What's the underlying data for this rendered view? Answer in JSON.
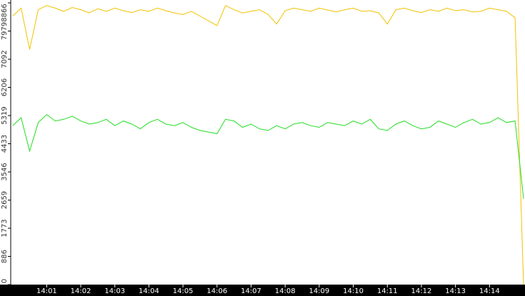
{
  "chart_data": {
    "type": "line",
    "x": [
      null,
      null,
      null,
      null,
      "14:01",
      null,
      null,
      null,
      "14:02",
      null,
      null,
      null,
      "14:03",
      null,
      null,
      null,
      "14:04",
      null,
      null,
      null,
      "14:05",
      null,
      null,
      null,
      "14:06",
      null,
      null,
      null,
      "14:07",
      null,
      null,
      null,
      "14:08",
      null,
      null,
      null,
      "14:09",
      null,
      null,
      null,
      "14:10",
      null,
      null,
      null,
      "14:11",
      null,
      null,
      null,
      "14:12",
      null,
      null,
      null,
      "14:13",
      null,
      null,
      null,
      "14:14",
      null,
      null,
      null,
      null
    ],
    "series": [
      {
        "color": "#f2c200",
        "values": [
          8450,
          8700,
          7400,
          8650,
          8780,
          8700,
          8600,
          8720,
          8650,
          8550,
          8680,
          8600,
          8700,
          8620,
          8560,
          8650,
          8600,
          8700,
          8620,
          8550,
          8500,
          8600,
          8450,
          8300,
          8150,
          8780,
          8650,
          8550,
          8600,
          8650,
          8500,
          8200,
          8620,
          8700,
          8650,
          8600,
          8700,
          8640,
          8580,
          8650,
          8700,
          8600,
          8620,
          8550,
          8200,
          8650,
          8700,
          8620,
          8560,
          8650,
          8600,
          8700,
          8620,
          8650,
          8580,
          8600,
          8700,
          8650,
          8600,
          8400,
          0
        ]
      },
      {
        "color": "#22dd22",
        "values": [
          5000,
          5250,
          4200,
          5100,
          5350,
          5150,
          5200,
          5300,
          5150,
          5050,
          5100,
          5200,
          5000,
          5150,
          5050,
          4900,
          5100,
          5200,
          5050,
          5000,
          5100,
          4950,
          4850,
          4800,
          4750,
          5200,
          5150,
          4950,
          5050,
          4900,
          4850,
          5000,
          4900,
          5050,
          5100,
          5000,
          4950,
          5100,
          5050,
          5000,
          5150,
          5050,
          5200,
          4900,
          4850,
          5050,
          5150,
          5000,
          4900,
          4950,
          5150,
          5050,
          4950,
          5100,
          5200,
          5050,
          5100,
          5250,
          5100,
          5150,
          2700
        ]
      }
    ],
    "ylim": [
      0,
      8866
    ],
    "yticks": [
      0,
      886,
      1773,
      2659,
      3546,
      4433,
      5319,
      6206,
      7092,
      7979,
      8866
    ]
  }
}
